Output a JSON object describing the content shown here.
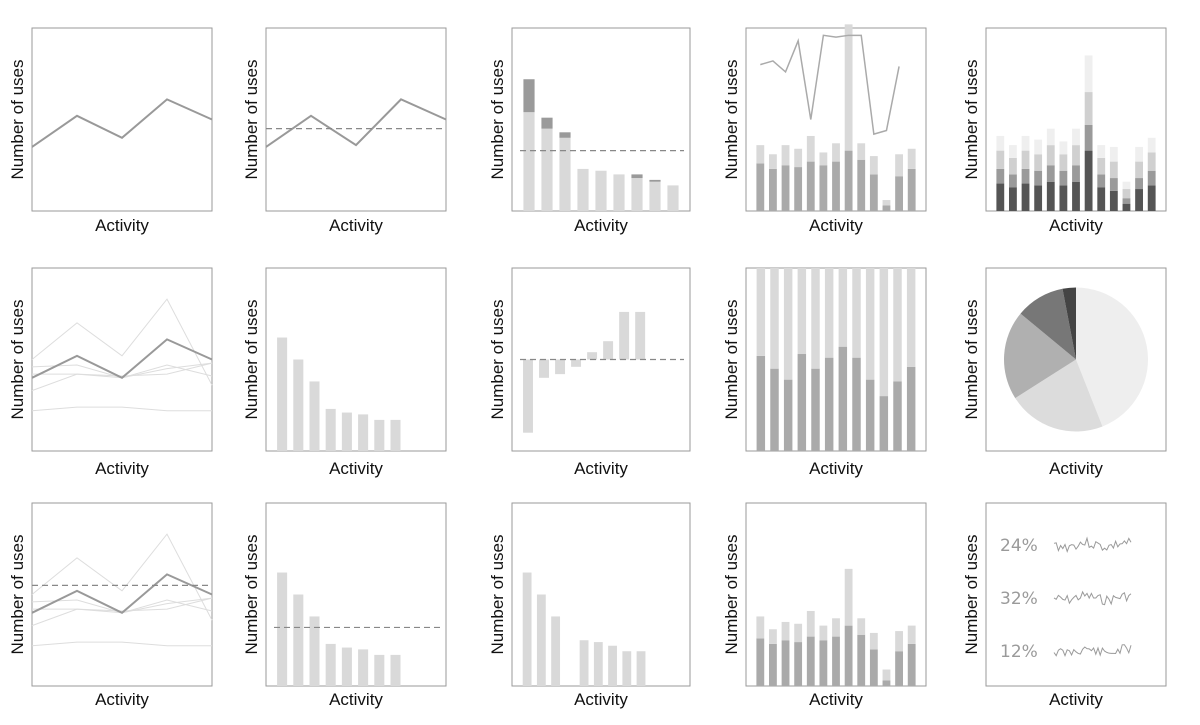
{
  "labels": {
    "x": "Activity",
    "y": "Number of uses"
  },
  "colors": {
    "frame": "#9a9a9a",
    "line": "#999999",
    "faint": "#dddddd",
    "bar_light": "#d9d9d9",
    "bar_mid": "#aaaaaa",
    "bar_dark": "#555555",
    "dash": "#888888"
  },
  "chart_data": [
    {
      "id": "p1",
      "type": "line",
      "values": [
        35,
        52,
        40,
        61,
        50
      ],
      "ylim": [
        0,
        100
      ]
    },
    {
      "id": "p2",
      "type": "line",
      "values": [
        35,
        52,
        36,
        61,
        50
      ],
      "reference": 45,
      "ylim": [
        0,
        100
      ]
    },
    {
      "id": "p3",
      "type": "bar",
      "series": [
        {
          "name": "",
          "values": [
            54,
            45,
            40,
            23,
            22,
            20,
            18,
            16,
            14
          ]
        },
        {
          "name": "",
          "values": [
            18,
            6,
            3,
            0,
            0,
            0,
            2,
            1,
            0
          ]
        }
      ],
      "reference": 33,
      "ylim": [
        0,
        100
      ]
    },
    {
      "id": "p4",
      "type": "bar",
      "series": [
        {
          "name": "",
          "values": [
            26,
            23,
            25,
            24,
            27,
            25,
            27,
            33,
            28,
            20,
            3,
            19,
            23
          ]
        },
        {
          "name": "",
          "values": [
            10,
            8,
            11,
            10,
            14,
            7,
            10,
            69,
            9,
            10,
            3,
            12,
            11
          ]
        }
      ],
      "line": [
        80,
        82,
        76,
        93,
        50,
        96,
        95,
        96,
        96,
        42,
        44,
        79
      ],
      "ylim": [
        0,
        100
      ]
    },
    {
      "id": "p5",
      "type": "bar",
      "series": [
        {
          "name": "",
          "values": [
            15,
            13,
            15,
            14,
            16,
            14,
            16,
            33,
            13,
            11,
            4,
            12,
            14
          ]
        },
        {
          "name": "",
          "values": [
            8,
            7,
            8,
            8,
            9,
            8,
            9,
            14,
            7,
            7,
            3,
            6,
            8
          ]
        },
        {
          "name": "",
          "values": [
            10,
            9,
            10,
            9,
            11,
            9,
            11,
            18,
            9,
            9,
            5,
            9,
            10
          ]
        },
        {
          "name": "",
          "values": [
            8,
            7,
            8,
            8,
            9,
            7,
            9,
            20,
            7,
            8,
            4,
            8,
            8
          ]
        }
      ],
      "ylim": [
        0,
        100
      ]
    },
    {
      "id": "p6",
      "type": "line",
      "values": [
        40,
        52,
        40,
        61,
        50
      ],
      "others": [
        [
          50,
          70,
          52,
          83,
          36
        ],
        [
          46,
          47,
          40,
          47,
          41
        ],
        [
          42,
          42,
          40,
          45,
          48
        ],
        [
          33,
          42,
          41,
          42,
          48
        ],
        [
          22,
          24,
          24,
          22,
          22
        ]
      ],
      "ylim": [
        0,
        100
      ]
    },
    {
      "id": "p7",
      "type": "bar",
      "values": [
        62,
        50,
        38,
        23,
        21,
        20,
        17,
        17
      ],
      "ylim": [
        0,
        100
      ]
    },
    {
      "id": "p8",
      "type": "bar",
      "values": [
        -40,
        -10,
        -8,
        -4,
        4,
        10,
        26,
        26
      ],
      "reference": 0,
      "ylim": [
        -50,
        50
      ]
    },
    {
      "id": "p9",
      "type": "bar",
      "series": [
        {
          "name": "",
          "values": [
            52,
            45,
            39,
            53,
            45,
            51,
            57,
            51,
            39,
            30,
            38,
            46
          ]
        },
        {
          "name": "",
          "values": [
            48,
            55,
            61,
            47,
            55,
            49,
            43,
            49,
            61,
            70,
            62,
            54
          ]
        }
      ],
      "ylim": [
        0,
        100
      ]
    },
    {
      "id": "p10",
      "type": "pie",
      "values": [
        44,
        22,
        20,
        11,
        3
      ]
    },
    {
      "id": "p11",
      "type": "line",
      "values": [
        40,
        52,
        40,
        61,
        50
      ],
      "others": [
        [
          50,
          70,
          52,
          83,
          36
        ],
        [
          46,
          47,
          40,
          47,
          41
        ],
        [
          42,
          42,
          40,
          45,
          48
        ],
        [
          33,
          42,
          41,
          42,
          48
        ],
        [
          22,
          24,
          24,
          22,
          22
        ]
      ],
      "reference": 55,
      "ylim": [
        0,
        100
      ]
    },
    {
      "id": "p12",
      "type": "bar",
      "values": [
        62,
        50,
        38,
        23,
        21,
        20,
        17,
        17
      ],
      "reference": 32,
      "ylim": [
        0,
        100
      ]
    },
    {
      "id": "p13",
      "type": "bar",
      "values": [
        62,
        50,
        38,
        0,
        25,
        24,
        22,
        19,
        19
      ],
      "ylim": [
        0,
        100
      ]
    },
    {
      "id": "p14",
      "type": "bar",
      "series": [
        {
          "name": "",
          "values": [
            26,
            23,
            25,
            24,
            27,
            25,
            27,
            33,
            28,
            20,
            3,
            19,
            23
          ]
        },
        {
          "name": "",
          "values": [
            12,
            8,
            10,
            10,
            14,
            8,
            10,
            31,
            9,
            9,
            6,
            11,
            10
          ]
        }
      ],
      "ylim": [
        0,
        100
      ]
    },
    {
      "id": "p15",
      "type": "sparkline",
      "items": [
        {
          "label": "24%"
        },
        {
          "label": "32%"
        },
        {
          "label": "12%"
        }
      ]
    }
  ]
}
